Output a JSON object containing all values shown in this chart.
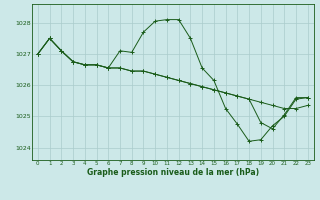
{
  "title": "Graphe pression niveau de la mer (hPa)",
  "bg_color": "#cce8e8",
  "grid_color": "#aacccc",
  "line_color": "#1a5c1a",
  "marker_color": "#1a5c1a",
  "xlim": [
    -0.5,
    23.5
  ],
  "ylim": [
    1023.6,
    1028.6
  ],
  "yticks": [
    1024,
    1025,
    1026,
    1027,
    1028
  ],
  "xticks": [
    0,
    1,
    2,
    3,
    4,
    5,
    6,
    7,
    8,
    9,
    10,
    11,
    12,
    13,
    14,
    15,
    16,
    17,
    18,
    19,
    20,
    21,
    22,
    23
  ],
  "series": [
    [
      1027.0,
      1027.5,
      1027.1,
      1026.75,
      1026.65,
      1026.65,
      1026.55,
      1026.55,
      1026.45,
      1026.45,
      1026.35,
      1026.25,
      1026.15,
      1026.05,
      1025.95,
      1025.85,
      1025.75,
      1025.65,
      1025.55,
      1025.45,
      1025.35,
      1025.25,
      1025.25,
      1025.35
    ],
    [
      1027.0,
      1027.5,
      1027.1,
      1026.75,
      1026.65,
      1026.65,
      1026.55,
      1027.1,
      1027.05,
      1027.7,
      1028.05,
      1028.1,
      1028.1,
      1027.5,
      1026.55,
      1026.15,
      1025.25,
      1024.75,
      1024.2,
      1024.25,
      1024.7,
      1025.0,
      1025.55,
      1025.6
    ],
    [
      1027.0,
      1027.5,
      1027.1,
      1026.75,
      1026.65,
      1026.65,
      1026.55,
      1026.55,
      1026.45,
      1026.45,
      1026.35,
      1026.25,
      1026.15,
      1026.05,
      1025.95,
      1025.85,
      1025.75,
      1025.65,
      1025.55,
      1024.8,
      1024.6,
      1025.05,
      1025.6,
      1025.6
    ]
  ]
}
